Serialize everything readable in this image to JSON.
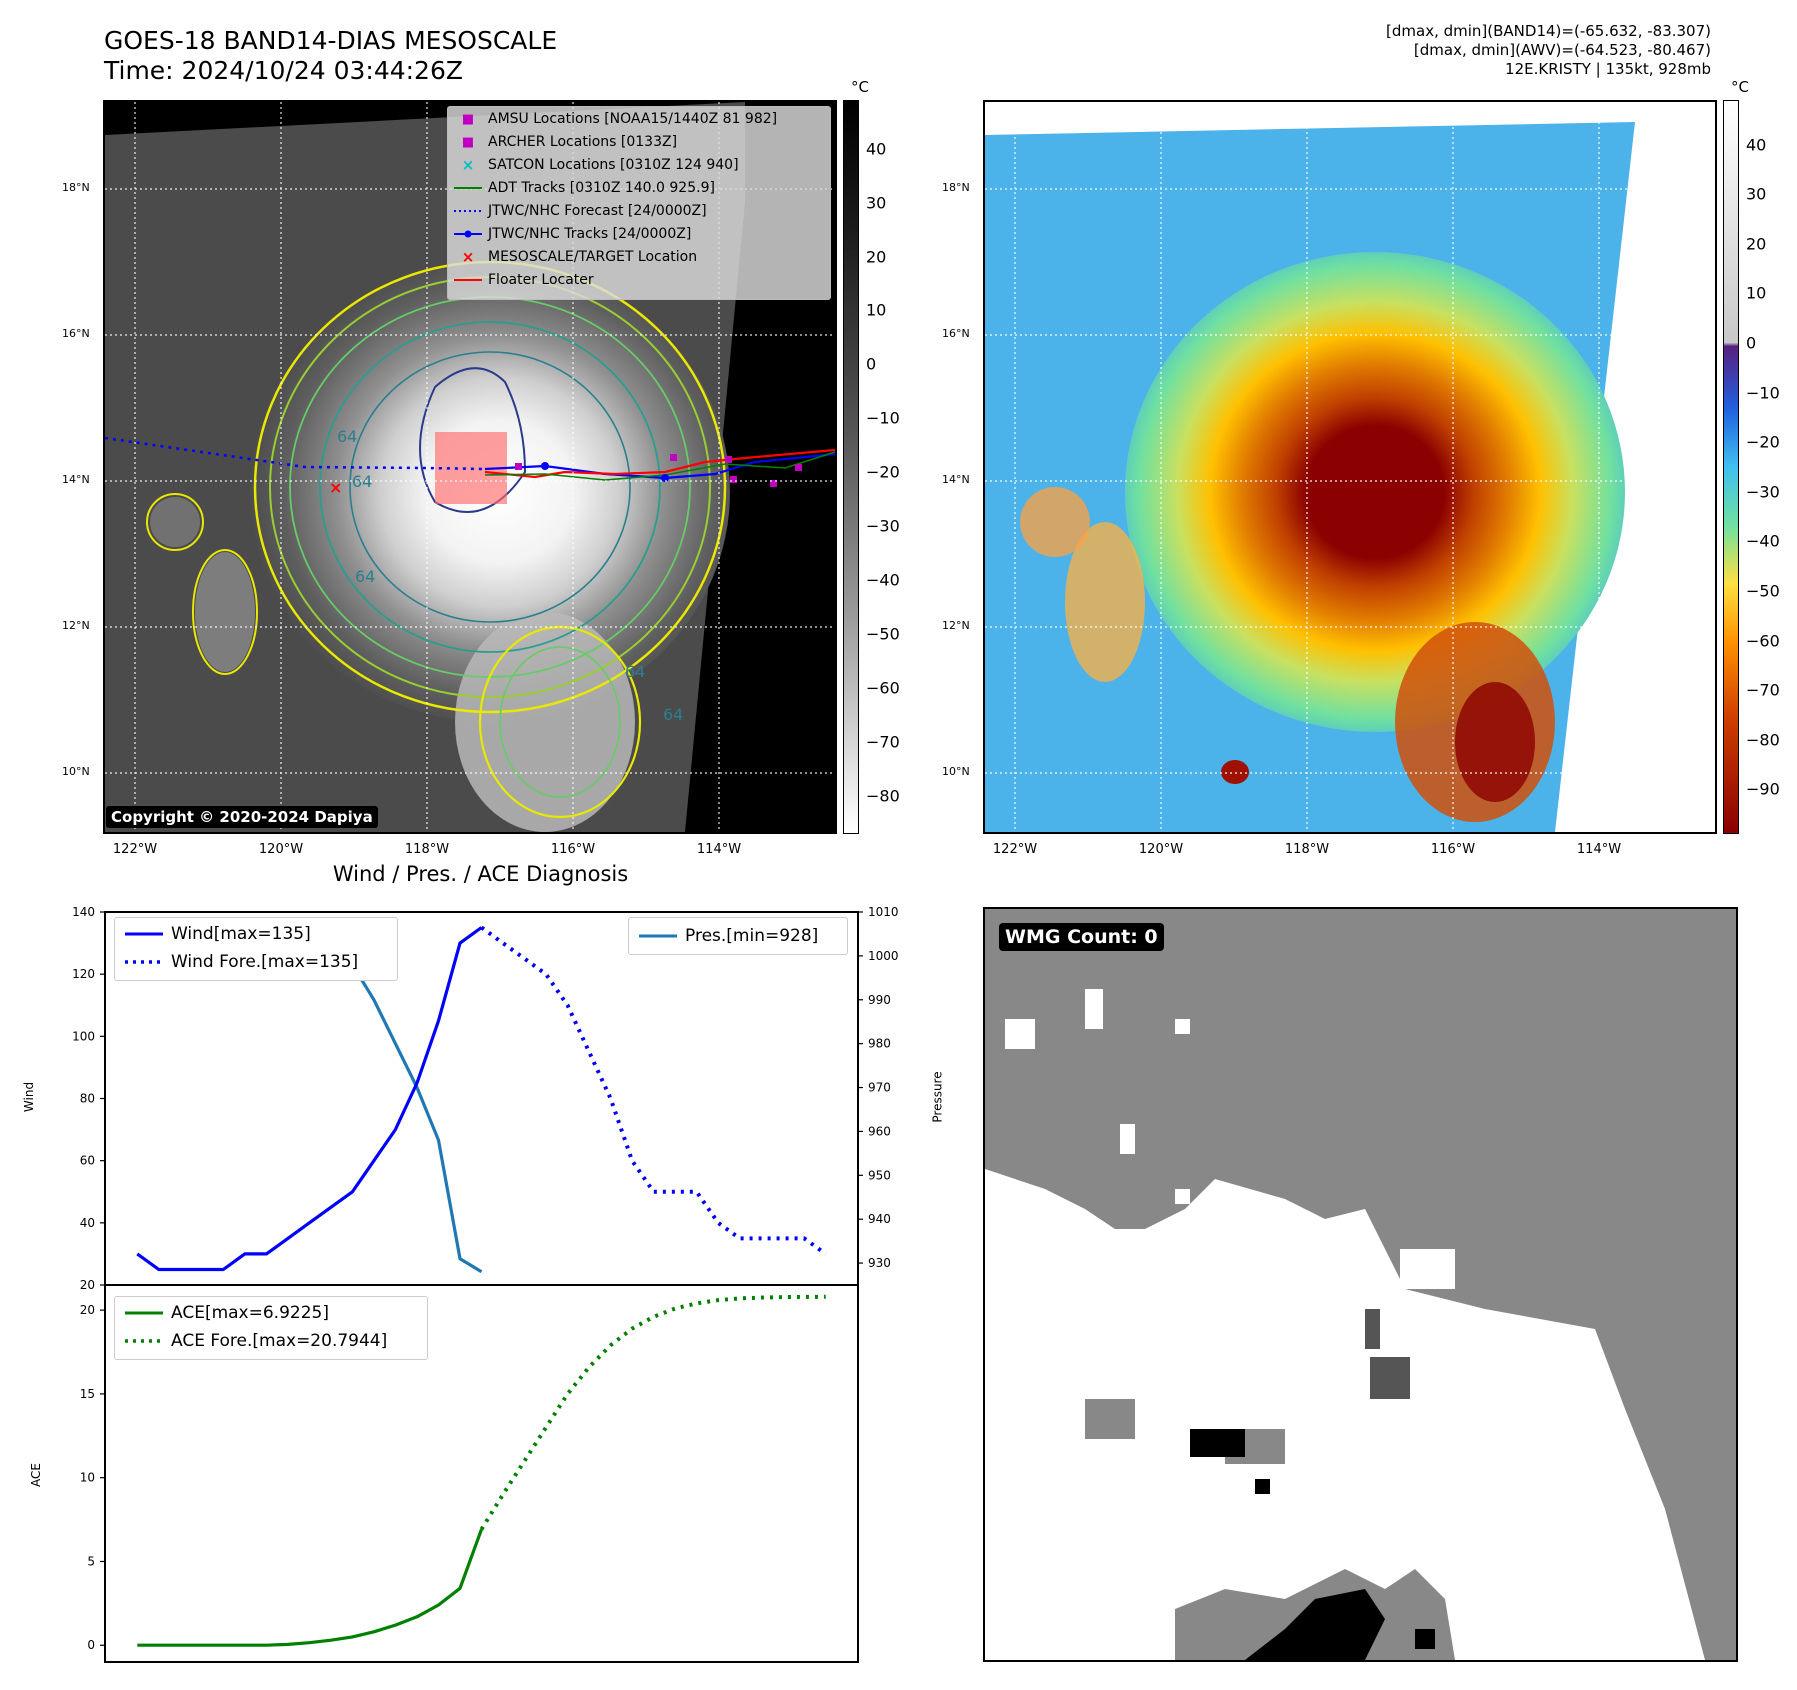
{
  "header": {
    "title_line1": "GOES-18 BAND14-DIAS MESOSCALE",
    "title_line2": "Time: 2024/10/24 03:44:26Z",
    "info_line1": "[dmax, dmin](BAND14)=(-65.632, -83.307)",
    "info_line2": "[dmax, dmin](AWV)=(-64.523, -80.467)",
    "info_line3": "12E.KRISTY | 135kt, 928mb"
  },
  "map_axes": {
    "lat_labels": [
      "18°N",
      "16°N",
      "14°N",
      "12°N",
      "10°N"
    ],
    "lon_labels": [
      "122°W",
      "120°W",
      "118°W",
      "116°W",
      "114°W"
    ],
    "lat_values": [
      18,
      16,
      14,
      12,
      10
    ],
    "lon_values": [
      -122,
      -120,
      -118,
      -116,
      -114
    ]
  },
  "left_map": {
    "copyright": "Copyright © 2020-2024 Dapiya",
    "colorbar_unit": "°C",
    "colorbar_ticks": [
      "40",
      "30",
      "20",
      "10",
      "0",
      "−10",
      "−20",
      "−30",
      "−40",
      "−50",
      "−60",
      "−70",
      "−80"
    ],
    "colorbar_values": [
      40,
      30,
      20,
      10,
      0,
      -10,
      -20,
      -30,
      -40,
      -50,
      -60,
      -70,
      -80
    ],
    "contour_labels": [
      "64",
      "64",
      "64",
      "64",
      "64"
    ],
    "legend": [
      {
        "label": "AMSU Locations [NOAA15/1440Z 81 982]",
        "symbol": "square",
        "color": "#c000c0"
      },
      {
        "label": "ARCHER Locations [0133Z]",
        "symbol": "square",
        "color": "#c000c0"
      },
      {
        "label": "SATCON Locations [0310Z 124 940]",
        "symbol": "x",
        "color": "#00c0c0"
      },
      {
        "label": "ADT Tracks [0310Z 140.0 925.9]",
        "symbol": "line",
        "color": "#008000"
      },
      {
        "label": "JTWC/NHC Forecast [24/0000Z]",
        "symbol": "dotted",
        "color": "#0000ff"
      },
      {
        "label": "JTWC/NHC Tracks [24/0000Z]",
        "symbol": "line-dot",
        "color": "#0000ff"
      },
      {
        "label": "MESOSCALE/TARGET Location",
        "symbol": "x",
        "color": "#ff0000"
      },
      {
        "label": "Floater Locater",
        "symbol": "line",
        "color": "#ff0000"
      }
    ]
  },
  "right_map": {
    "colorbar_unit": "°C",
    "colorbar_ticks": [
      "40",
      "30",
      "20",
      "10",
      "0",
      "−10",
      "−20",
      "−30",
      "−40",
      "−50",
      "−60",
      "−70",
      "−80",
      "−90"
    ],
    "colorbar_values": [
      40,
      30,
      20,
      10,
      0,
      -10,
      -20,
      -30,
      -40,
      -50,
      -60,
      -70,
      -80,
      -90
    ]
  },
  "wmg_panel": {
    "label": "WMG Count: 0"
  },
  "chart_data": [
    {
      "type": "line",
      "title": "Wind / Pres. / ACE Diagnosis",
      "ylabel": "Wind",
      "ylim": [
        20,
        140
      ],
      "yticks": [
        20,
        40,
        60,
        80,
        100,
        120,
        140
      ],
      "series": [
        {
          "name": "Wind[max=135]",
          "style": "solid",
          "color": "#0000ff",
          "x": [
            0,
            1,
            2,
            3,
            4,
            5,
            6,
            7,
            8,
            9,
            10,
            11,
            12,
            13,
            14,
            15,
            16
          ],
          "values": [
            30,
            25,
            25,
            25,
            25,
            30,
            30,
            35,
            40,
            45,
            50,
            60,
            70,
            85,
            105,
            130,
            135
          ]
        },
        {
          "name": "Wind Fore.[max=135]",
          "style": "dotted",
          "color": "#0000ff",
          "x": [
            16,
            17,
            18,
            19,
            20,
            21,
            22,
            23,
            24,
            25,
            26,
            27,
            28,
            29,
            30,
            31,
            32
          ],
          "values": [
            135,
            130,
            125,
            120,
            110,
            95,
            80,
            60,
            50,
            50,
            50,
            40,
            35,
            35,
            35,
            35,
            30
          ]
        }
      ]
    },
    {
      "type": "line",
      "ylabel": "Pressure",
      "ylim": [
        925,
        1010
      ],
      "yticks": [
        930,
        940,
        950,
        960,
        970,
        980,
        990,
        1000,
        1010
      ],
      "series": [
        {
          "name": "Pres.[min=928]",
          "style": "solid",
          "color": "#1f77b4",
          "x": [
            0,
            1,
            2,
            3,
            4,
            5,
            6,
            7,
            8,
            9,
            10,
            11,
            12,
            13,
            14,
            15,
            16
          ],
          "values": [
            1006,
            1006,
            1006,
            1007,
            1007,
            1007,
            1006,
            1005,
            1003,
            1001,
            998,
            990,
            980,
            970,
            958,
            931,
            928
          ]
        }
      ]
    },
    {
      "type": "line",
      "ylabel": "ACE",
      "ylim": [
        -1,
        21.5
      ],
      "yticks": [
        0,
        5,
        10,
        15,
        20
      ],
      "series": [
        {
          "name": "ACE[max=6.9225]",
          "style": "solid",
          "color": "#008000",
          "x": [
            0,
            2,
            4,
            6,
            7,
            8,
            9,
            10,
            11,
            12,
            13,
            14,
            15,
            16
          ],
          "values": [
            0,
            0,
            0,
            0,
            0.05,
            0.15,
            0.3,
            0.5,
            0.8,
            1.2,
            1.7,
            2.4,
            3.4,
            6.9225
          ]
        },
        {
          "name": "ACE Fore.[max=20.7944]",
          "style": "dotted",
          "color": "#008000",
          "x": [
            16,
            17,
            18,
            19,
            20,
            21,
            22,
            23,
            24,
            25,
            26,
            27,
            28,
            29,
            30,
            31,
            32
          ],
          "values": [
            6.9225,
            9.0,
            11.0,
            13.0,
            15.0,
            16.6,
            17.9,
            18.9,
            19.6,
            20.1,
            20.4,
            20.6,
            20.7,
            20.75,
            20.78,
            20.79,
            20.7944
          ]
        }
      ]
    }
  ]
}
